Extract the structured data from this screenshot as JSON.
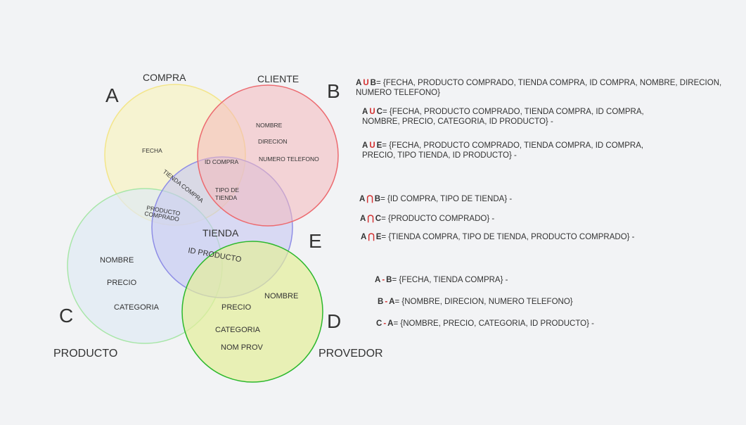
{
  "sets": {
    "A": {
      "letter": "A",
      "name": "COMPRA",
      "fill": "#f7f3c4",
      "stroke": "#f3e58a"
    },
    "B": {
      "letter": "B",
      "name": "CLIENTE",
      "fill": "#f4b8bc",
      "stroke": "#ec6b70"
    },
    "C": {
      "letter": "C",
      "name": "PRODUCTO",
      "fill": "#dfe9f4",
      "stroke": "#a8e6a8"
    },
    "D": {
      "letter": "D",
      "name": "PROVEDOR",
      "fill": "#e4ee9a",
      "stroke": "#2db82d"
    },
    "E": {
      "letter": "E",
      "name": "TIENDA",
      "fill": "#c7c8f2",
      "stroke": "#8f8ee6"
    }
  },
  "labels": {
    "fecha": "FECHA",
    "id_compra": "ID COMPRA",
    "tienda_compra": "TIENDA COMPRA",
    "producto_comprado_1": "PRODUCTO",
    "producto_comprado_2": "COMPRADO",
    "nombre_b": "NOMBRE",
    "direcion": "DIRECION",
    "numero_telefono": "NUMERO TELEFONO",
    "tipo_tienda_1": "TIPO DE",
    "tipo_tienda_2": "TIENDA",
    "tienda": "TIENDA",
    "id_producto": "ID PRODUCTO",
    "nombre_c": "NOMBRE",
    "precio_c": "PRECIO",
    "categoria_c": "CATEGORIA",
    "nombre_d": "NOMBRE",
    "precio_d": "PRECIO",
    "categoria_d": "CATEGORIA",
    "nom_prov": "NOM PROV"
  },
  "equations": [
    {
      "id": "a-union-b",
      "left": "A",
      "op": "U",
      "right": "B",
      "line1": "= {FECHA, PRODUCTO COMPRADO, TIENDA COMPRA, ID COMPRA, NOMBRE, DIRECION,",
      "line2": "NUMERO TELEFONO}"
    },
    {
      "id": "a-union-c",
      "left": "A",
      "op": "U",
      "right": "C",
      "line1": "= {FECHA, PRODUCTO COMPRADO, TIENDA COMPRA, ID COMPRA,",
      "line2": "NOMBRE, PRECIO, CATEGORIA, ID PRODUCTO} -"
    },
    {
      "id": "a-union-e",
      "left": "A",
      "op": "U",
      "right": "E",
      "line1": "= {FECHA, PRODUCTO COMPRADO, TIENDA COMPRA, ID COMPRA,",
      "line2": "PRECIO, TIPO TIENDA, ID PRODUCTO} -"
    },
    {
      "id": "a-inter-b",
      "left": "A",
      "op": "⋂",
      "right": "B",
      "line1": "= {ID COMPRA, TIPO DE TIENDA} -",
      "line2": ""
    },
    {
      "id": "a-inter-c",
      "left": "A",
      "op": "⋂",
      "right": "C",
      "line1": "= {PRODUCTO COMPRADO} -",
      "line2": ""
    },
    {
      "id": "a-inter-e",
      "left": "A",
      "op": "⋂",
      "right": "E",
      "line1": "= {TIENDA COMPRA, TIPO DE TIENDA, PRODUCTO COMPRADO} -",
      "line2": ""
    },
    {
      "id": "a-minus-b",
      "left": "A",
      "op": "-",
      "right": "B",
      "line1": "= {FECHA, TIENDA COMPRA} -",
      "line2": ""
    },
    {
      "id": "b-minus-a",
      "left": "B",
      "op": "-",
      "right": "A",
      "line1": "= {NOMBRE, DIRECION, NUMERO TELEFONO}",
      "line2": ""
    },
    {
      "id": "c-minus-a",
      "left": "C",
      "op": "-",
      "right": "A",
      "line1": "= {NOMBRE, PRECIO, CATEGORIA, ID PRODUCTO} -",
      "line2": ""
    }
  ]
}
